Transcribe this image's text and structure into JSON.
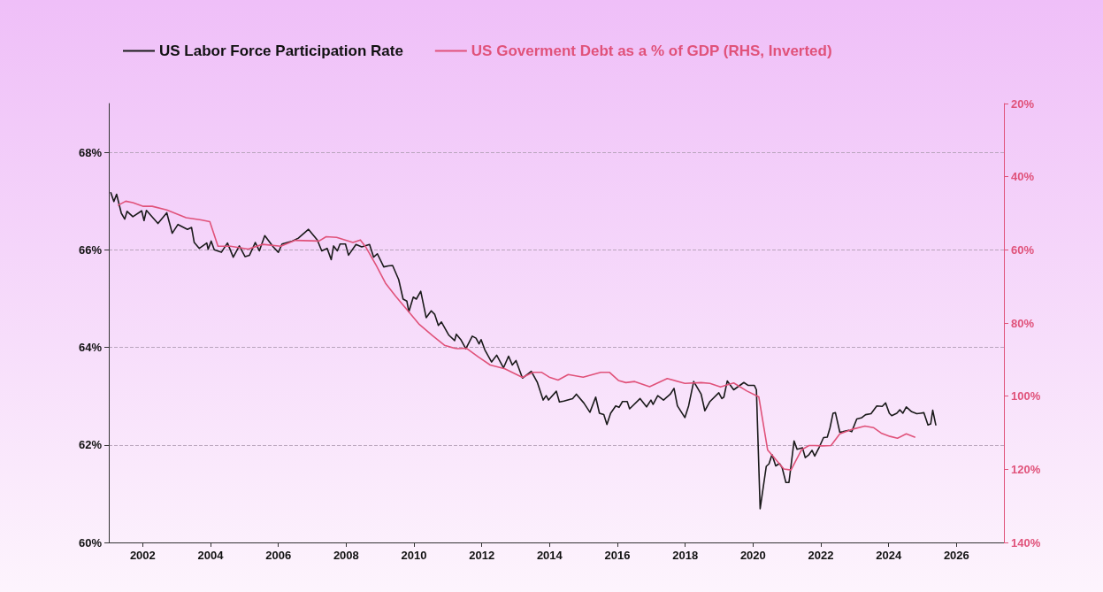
{
  "chart_data": {
    "type": "line",
    "legend": "top left",
    "grid": "y",
    "marker": "none",
    "line_style": "solid",
    "xlim": [
      2001,
      2027.4
    ],
    "xticks": [
      2002,
      2004,
      2006,
      2008,
      2010,
      2012,
      2014,
      2016,
      2018,
      2020,
      2022,
      2024,
      2026
    ],
    "ylim": [
      60,
      69
    ],
    "yticks": [
      {
        "value": 60,
        "label": "60%"
      },
      {
        "value": 62,
        "label": "62%"
      },
      {
        "value": 64,
        "label": "64%"
      },
      {
        "value": 66,
        "label": "66%"
      },
      {
        "value": 68,
        "label": "68%"
      }
    ],
    "y2lim": [
      140,
      20
    ],
    "y2ticks": [
      {
        "value": 20,
        "label": "20%"
      },
      {
        "value": 40,
        "label": "40%"
      },
      {
        "value": 60,
        "label": "60%"
      },
      {
        "value": 80,
        "label": "80%"
      },
      {
        "value": 100,
        "label": "100%"
      },
      {
        "value": 120,
        "label": "120%"
      },
      {
        "value": 140,
        "label": "140%"
      }
    ],
    "series": [
      {
        "name": "US Labor Force Participation Rate",
        "color": "#1a1a1a",
        "x": [
          2001.06,
          2001.15,
          2001.23,
          2001.37,
          2001.47,
          2001.54,
          2001.71,
          2001.97,
          2002.04,
          2002.11,
          2002.45,
          2002.71,
          2002.87,
          2003.04,
          2003.32,
          2003.44,
          2003.52,
          2003.67,
          2003.89,
          2003.93,
          2004.02,
          2004.11,
          2004.32,
          2004.5,
          2004.67,
          2004.85,
          2005.02,
          2005.15,
          2005.32,
          2005.44,
          2005.6,
          2005.85,
          2006.0,
          2006.11,
          2006.41,
          2006.59,
          2006.89,
          2007.15,
          2007.28,
          2007.44,
          2007.56,
          2007.63,
          2007.74,
          2007.82,
          2007.98,
          2008.07,
          2008.29,
          2008.46,
          2008.69,
          2008.81,
          2008.92,
          2009.11,
          2009.24,
          2009.37,
          2009.55,
          2009.68,
          2009.79,
          2009.85,
          2009.98,
          2010.07,
          2010.2,
          2010.36,
          2010.51,
          2010.61,
          2010.72,
          2010.81,
          2011.03,
          2011.2,
          2011.25,
          2011.38,
          2011.53,
          2011.72,
          2011.83,
          2011.92,
          2011.98,
          2012.09,
          2012.29,
          2012.44,
          2012.64,
          2012.79,
          2012.9,
          2013.01,
          2013.2,
          2013.46,
          2013.64,
          2013.81,
          2013.9,
          2013.97,
          2014.2,
          2014.29,
          2014.42,
          2014.68,
          2014.79,
          2015.01,
          2015.19,
          2015.36,
          2015.47,
          2015.6,
          2015.69,
          2015.8,
          2015.95,
          2016.05,
          2016.15,
          2016.29,
          2016.36,
          2016.67,
          2016.86,
          2016.99,
          2017.05,
          2017.19,
          2017.36,
          2017.56,
          2017.67,
          2017.77,
          2017.99,
          2018.1,
          2018.25,
          2018.47,
          2018.58,
          2018.73,
          2018.99,
          2019.08,
          2019.14,
          2019.24,
          2019.43,
          2019.73,
          2019.86,
          2020.04,
          2020.1,
          2020.21,
          2020.39,
          2020.47,
          2020.56,
          2020.67,
          2020.78,
          2020.86,
          2020.97,
          2021.06,
          2021.21,
          2021.3,
          2021.46,
          2021.54,
          2021.65,
          2021.74,
          2021.82,
          2021.95,
          2022.08,
          2022.19,
          2022.27,
          2022.36,
          2022.43,
          2022.56,
          2022.65,
          2022.82,
          2022.91,
          2023.06,
          2023.21,
          2023.32,
          2023.48,
          2023.65,
          2023.81,
          2023.91,
          2024.02,
          2024.09,
          2024.24,
          2024.33,
          2024.42,
          2024.52,
          2024.68,
          2024.83,
          2024.94,
          2025.04,
          2025.16,
          2025.24,
          2025.3,
          2025.39
        ],
        "values": [
          67.17,
          66.99,
          67.14,
          66.75,
          66.63,
          66.79,
          66.68,
          66.8,
          66.6,
          66.81,
          66.54,
          66.76,
          66.34,
          66.52,
          66.42,
          66.46,
          66.15,
          66.03,
          66.14,
          66.01,
          66.18,
          66.0,
          65.95,
          66.14,
          65.85,
          66.08,
          65.86,
          65.89,
          66.15,
          65.98,
          66.29,
          66.06,
          65.95,
          66.12,
          66.18,
          66.24,
          66.42,
          66.2,
          65.98,
          66.03,
          65.8,
          66.08,
          65.98,
          66.12,
          66.12,
          65.89,
          66.11,
          66.06,
          66.11,
          65.85,
          65.92,
          65.65,
          65.67,
          65.68,
          65.39,
          64.99,
          64.95,
          64.73,
          65.03,
          64.99,
          65.15,
          64.61,
          64.75,
          64.68,
          64.45,
          64.52,
          64.25,
          64.14,
          64.27,
          64.16,
          63.97,
          64.23,
          64.19,
          64.07,
          64.16,
          63.95,
          63.7,
          63.84,
          63.58,
          63.82,
          63.64,
          63.73,
          63.37,
          63.51,
          63.28,
          62.92,
          63.01,
          62.92,
          63.1,
          62.88,
          62.9,
          62.95,
          63.04,
          62.86,
          62.67,
          62.98,
          62.65,
          62.62,
          62.42,
          62.65,
          62.8,
          62.77,
          62.89,
          62.89,
          62.74,
          62.95,
          62.78,
          62.92,
          62.83,
          63.01,
          62.92,
          63.04,
          63.16,
          62.8,
          62.56,
          62.8,
          63.3,
          63.04,
          62.7,
          62.89,
          63.07,
          62.95,
          62.98,
          63.31,
          63.13,
          63.28,
          63.22,
          63.22,
          63.13,
          60.69,
          61.56,
          61.61,
          61.8,
          61.57,
          61.62,
          61.53,
          61.23,
          61.23,
          62.08,
          61.91,
          61.94,
          61.74,
          61.8,
          61.89,
          61.77,
          61.95,
          62.15,
          62.16,
          62.35,
          62.65,
          62.66,
          62.26,
          62.27,
          62.3,
          62.27,
          62.53,
          62.56,
          62.62,
          62.64,
          62.8,
          62.79,
          62.86,
          62.65,
          62.6,
          62.65,
          62.72,
          62.65,
          62.78,
          62.68,
          62.64,
          62.65,
          62.66,
          62.41,
          62.43,
          62.71,
          62.41
        ]
      },
      {
        "name": "US Goverment Debt as a % of GDP (RHS, Inverted)",
        "color": "#e0527a",
        "axis": "y2",
        "x": [
          2001.28,
          2001.5,
          2001.71,
          2002.02,
          2002.28,
          2002.71,
          2003.28,
          2003.72,
          2003.98,
          2004.22,
          2004.59,
          2005.11,
          2005.54,
          2006.07,
          2006.5,
          2007.2,
          2007.41,
          2007.72,
          2008.2,
          2008.42,
          2008.59,
          2008.89,
          2009.16,
          2009.46,
          2009.85,
          2010.16,
          2010.55,
          2010.9,
          2011.2,
          2011.29,
          2011.55,
          2011.9,
          2012.25,
          2012.68,
          2013.2,
          2013.51,
          2013.77,
          2013.99,
          2014.25,
          2014.55,
          2014.99,
          2015.51,
          2015.77,
          2016.03,
          2016.25,
          2016.51,
          2016.95,
          2017.47,
          2017.99,
          2018.47,
          2018.73,
          2019.04,
          2019.43,
          2019.82,
          2020.17,
          2020.43,
          2020.91,
          2021.12,
          2021.43,
          2021.65,
          2021.82,
          2022.04,
          2022.3,
          2022.56,
          2022.95,
          2023.3,
          2023.55,
          2023.78,
          2024.04,
          2024.26,
          2024.52,
          2024.77
        ],
        "values": [
          47.8,
          46.7,
          47.1,
          48.1,
          48.1,
          49.1,
          51.2,
          51.8,
          52.3,
          59.0,
          59.0,
          59.8,
          58.5,
          59.0,
          57.4,
          57.6,
          56.4,
          56.6,
          58.0,
          57.3,
          59.4,
          64.3,
          69.1,
          72.7,
          77.0,
          80.4,
          83.5,
          86.1,
          86.9,
          87.0,
          86.9,
          89.3,
          91.5,
          92.5,
          94.9,
          93.5,
          93.5,
          94.8,
          95.6,
          94.1,
          94.8,
          93.5,
          93.5,
          95.7,
          96.3,
          96.0,
          97.4,
          95.2,
          96.5,
          96.3,
          96.5,
          97.5,
          96.4,
          98.6,
          100.2,
          114.7,
          119.9,
          120.2,
          114.7,
          113.5,
          113.5,
          113.6,
          113.5,
          110.3,
          109.0,
          108.2,
          108.6,
          110.1,
          111.0,
          111.5,
          110.3,
          111.2
        ]
      }
    ]
  }
}
